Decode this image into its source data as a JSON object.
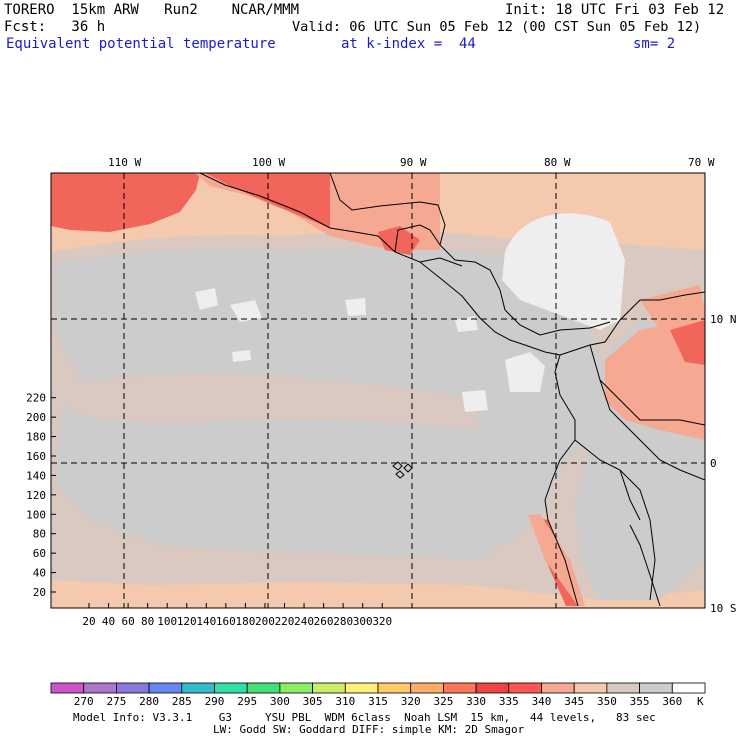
{
  "header": {
    "line1_left": "TORERO  15km ARW   Run2    NCAR/MMM",
    "line1_right": "Init: 18 UTC Fri 03 Feb 12",
    "line2_left": "Fcst:   36 h",
    "line2_right": "Valid: 06 UTC Sun 05 Feb 12 (00 CST Sun 05 Feb 12)",
    "field_name": "Equivalent potential temperature",
    "level": "at k-index =  44",
    "smoothing": "sm= 2"
  },
  "map": {
    "top_labels": [
      "110 W",
      "100 W",
      "90 W",
      "80 W",
      "70 W"
    ],
    "right_labels": [
      "10 N",
      "0",
      "10 S"
    ],
    "y_ticks": [
      "20",
      "40",
      "60",
      "80",
      "100",
      "120",
      "140",
      "160",
      "180",
      "200",
      "220"
    ],
    "x_ticks": [
      "20",
      "40",
      "60",
      "80",
      "100",
      "120",
      "140",
      "160",
      "180",
      "200",
      "220",
      "240",
      "260",
      "280",
      "300",
      "320"
    ],
    "colors": {
      "very_warm": "#f2655a",
      "warm": "#f5a892",
      "mild": "#f4c9ad",
      "grey_warm": "#d9c9c0",
      "grey": "#cccccc",
      "light": "#eeeeee",
      "coast": "#000000"
    }
  },
  "colorbar": {
    "labels": [
      "270",
      "275",
      "280",
      "285",
      "290",
      "295",
      "300",
      "305",
      "310",
      "315",
      "320",
      "325",
      "330",
      "335",
      "340",
      "345",
      "350",
      "355",
      "360"
    ],
    "unit": "K",
    "colors": [
      "#cc55cc",
      "#aa77cc",
      "#8877dd",
      "#6688ee",
      "#33bbcc",
      "#33ddaa",
      "#44dd77",
      "#88ee66",
      "#ccee66",
      "#ffee77",
      "#ffcc66",
      "#ffaa66",
      "#ff7755",
      "#ee4444",
      "#ff5555",
      "#f5a892",
      "#f4c9ad",
      "#d9c9c0",
      "#cccccc",
      "#ffffff"
    ]
  },
  "footer": {
    "line1": "Model Info: V3.3.1    G3     YSU PBL  WDM 6class  Noah LSM  15 km,   44 levels,   83 sec",
    "line2": "LW: Godd SW: Goddard DIFF: simple KM: 2D Smagor"
  }
}
